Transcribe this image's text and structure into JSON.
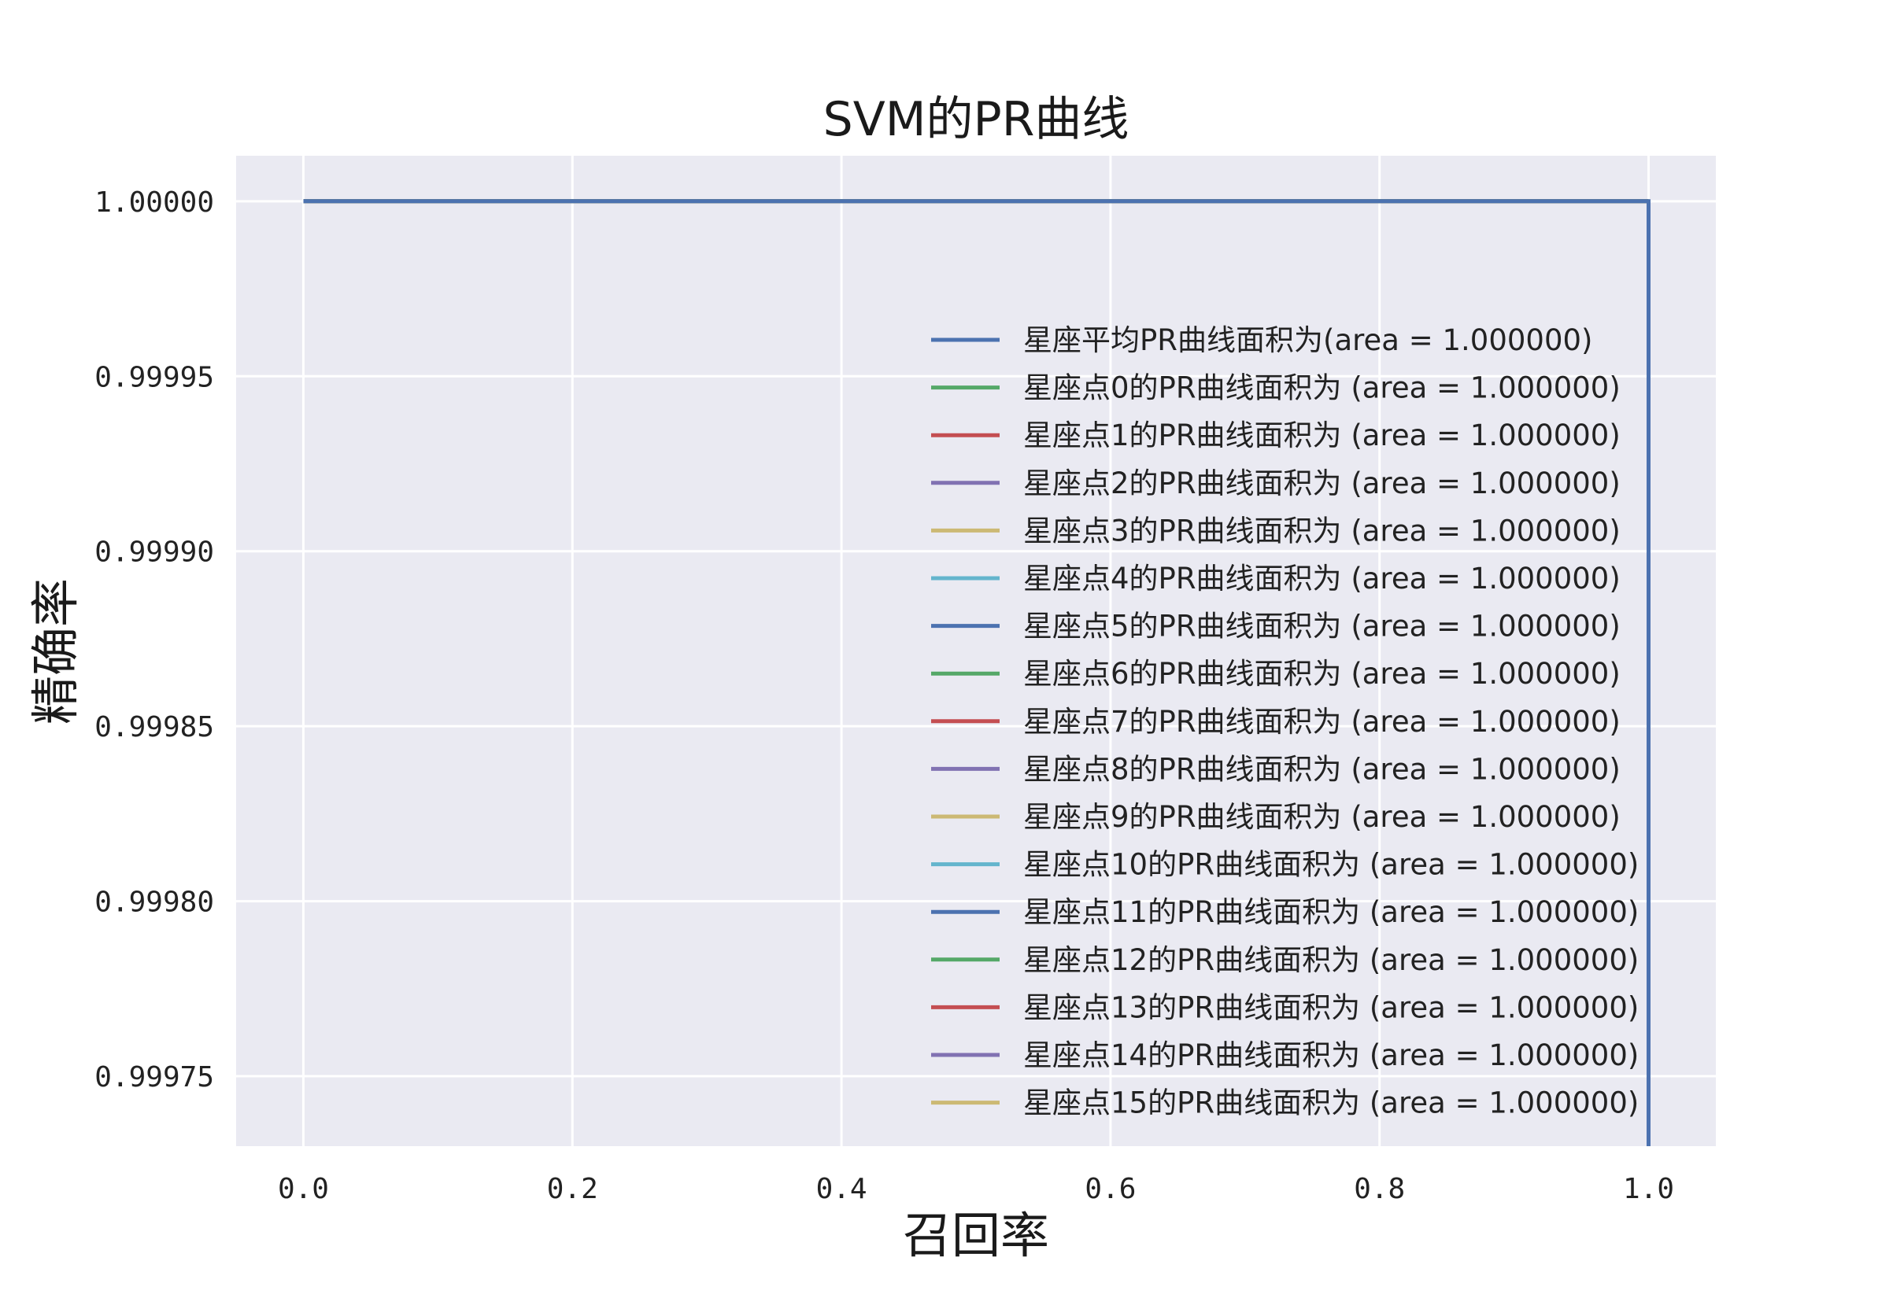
{
  "chart_data": {
    "type": "line",
    "title": "SVM的PR曲线",
    "xlabel": "召回率",
    "ylabel": "精确率",
    "xlim": [
      -0.05,
      1.05
    ],
    "ylim": [
      0.99973,
      1.000013
    ],
    "xticks": [
      0.0,
      0.2,
      0.4,
      0.6,
      0.8,
      1.0
    ],
    "xtick_labels": [
      "0.0",
      "0.2",
      "0.4",
      "0.6",
      "0.8",
      "1.0"
    ],
    "yticks": [
      0.99975,
      0.9998,
      0.99985,
      0.9999,
      0.99995,
      1.0
    ],
    "ytick_labels": [
      "0.99975",
      "0.99980",
      "0.99985",
      "0.99990",
      "0.99995",
      "1.00000"
    ],
    "grid": true,
    "legend_position": "right",
    "series": [
      {
        "name": "星座平均PR曲线面积为(area = 1.000000)",
        "color": "#4c72b0",
        "x": [
          0.0,
          1.0,
          1.0
        ],
        "y": [
          1.0,
          1.0,
          0.99973
        ]
      },
      {
        "name": "星座点0的PR曲线面积为 (area = 1.000000)",
        "color": "#55a868",
        "x": [
          0.0,
          1.0
        ],
        "y": [
          1.0,
          1.0
        ]
      },
      {
        "name": "星座点1的PR曲线面积为 (area = 1.000000)",
        "color": "#c44e52",
        "x": [
          0.0,
          1.0
        ],
        "y": [
          1.0,
          1.0
        ]
      },
      {
        "name": "星座点2的PR曲线面积为 (area = 1.000000)",
        "color": "#8172b2",
        "x": [
          0.0,
          1.0
        ],
        "y": [
          1.0,
          1.0
        ]
      },
      {
        "name": "星座点3的PR曲线面积为 (area = 1.000000)",
        "color": "#ccb974",
        "x": [
          0.0,
          1.0
        ],
        "y": [
          1.0,
          1.0
        ]
      },
      {
        "name": "星座点4的PR曲线面积为 (area = 1.000000)",
        "color": "#64b5cd",
        "x": [
          0.0,
          1.0
        ],
        "y": [
          1.0,
          1.0
        ]
      },
      {
        "name": "星座点5的PR曲线面积为 (area = 1.000000)",
        "color": "#4c72b0",
        "x": [
          0.0,
          1.0
        ],
        "y": [
          1.0,
          1.0
        ]
      },
      {
        "name": "星座点6的PR曲线面积为 (area = 1.000000)",
        "color": "#55a868",
        "x": [
          0.0,
          1.0
        ],
        "y": [
          1.0,
          1.0
        ]
      },
      {
        "name": "星座点7的PR曲线面积为 (area = 1.000000)",
        "color": "#c44e52",
        "x": [
          0.0,
          1.0
        ],
        "y": [
          1.0,
          1.0
        ]
      },
      {
        "name": "星座点8的PR曲线面积为 (area = 1.000000)",
        "color": "#8172b2",
        "x": [
          0.0,
          1.0
        ],
        "y": [
          1.0,
          1.0
        ]
      },
      {
        "name": "星座点9的PR曲线面积为 (area = 1.000000)",
        "color": "#ccb974",
        "x": [
          0.0,
          1.0
        ],
        "y": [
          1.0,
          1.0
        ]
      },
      {
        "name": "星座点10的PR曲线面积为 (area = 1.000000)",
        "color": "#64b5cd",
        "x": [
          0.0,
          1.0
        ],
        "y": [
          1.0,
          1.0
        ]
      },
      {
        "name": "星座点11的PR曲线面积为 (area = 1.000000)",
        "color": "#4c72b0",
        "x": [
          0.0,
          1.0
        ],
        "y": [
          1.0,
          1.0
        ]
      },
      {
        "name": "星座点12的PR曲线面积为 (area = 1.000000)",
        "color": "#55a868",
        "x": [
          0.0,
          1.0
        ],
        "y": [
          1.0,
          1.0
        ]
      },
      {
        "name": "星座点13的PR曲线面积为 (area = 1.000000)",
        "color": "#c44e52",
        "x": [
          0.0,
          1.0
        ],
        "y": [
          1.0,
          1.0
        ]
      },
      {
        "name": "星座点14的PR曲线面积为 (area = 1.000000)",
        "color": "#8172b2",
        "x": [
          0.0,
          1.0
        ],
        "y": [
          1.0,
          1.0
        ]
      },
      {
        "name": "星座点15的PR曲线面积为 (area = 1.000000)",
        "color": "#ccb974",
        "x": [
          0.0,
          1.0
        ],
        "y": [
          1.0,
          1.0
        ]
      }
    ]
  }
}
